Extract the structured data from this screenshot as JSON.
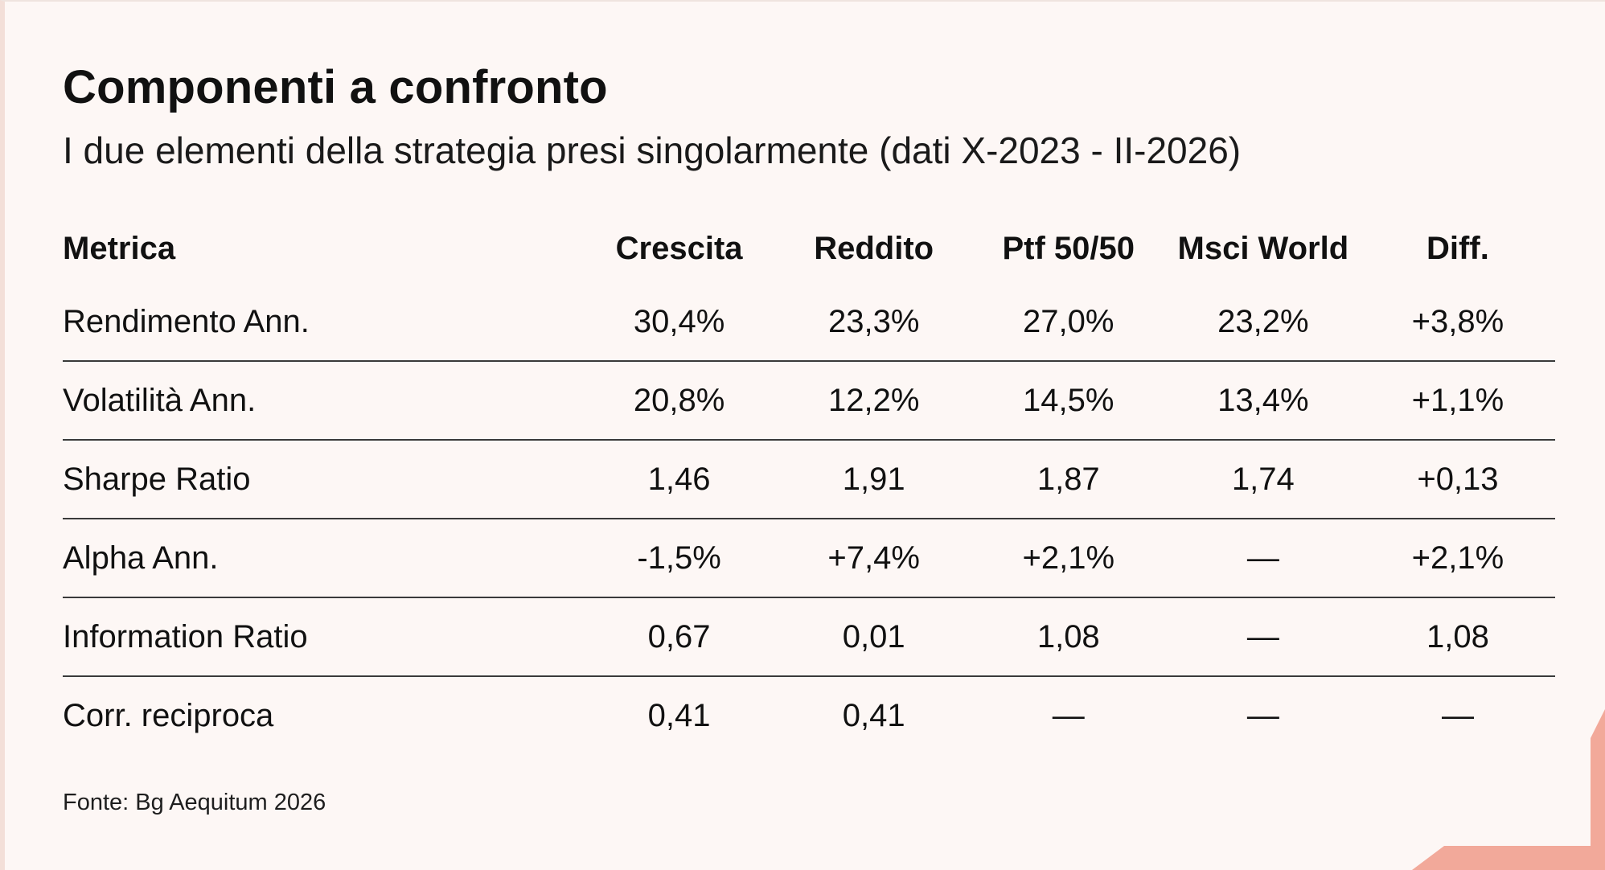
{
  "title": "Componenti a confronto",
  "subtitle": "I due elementi della strategia presi singolarmente (dati X-2023 - II-2026)",
  "source": "Fonte: Bg Aequitum 2026",
  "colors": {
    "background": "#fdf7f5",
    "accent": "#f2a99a",
    "rule": "#3a3a3a"
  },
  "chart_data": {
    "type": "table",
    "columns": [
      "Metrica",
      "Crescita",
      "Reddito",
      "Ptf 50/50",
      "Msci World",
      "Diff."
    ],
    "rows": [
      [
        "Rendimento Ann.",
        "30,4%",
        "23,3%",
        "27,0%",
        "23,2%",
        "+3,8%"
      ],
      [
        "Volatilità Ann.",
        "20,8%",
        "12,2%",
        "14,5%",
        "13,4%",
        "+1,1%"
      ],
      [
        "Sharpe Ratio",
        "1,46",
        "1,91",
        "1,87",
        "1,74",
        "+0,13"
      ],
      [
        "Alpha Ann.",
        "-1,5%",
        "+7,4%",
        "+2,1%",
        "—",
        "+2,1%"
      ],
      [
        "Information Ratio",
        "0,67",
        "0,01",
        "1,08",
        "—",
        "1,08"
      ],
      [
        "Corr. reciproca",
        "0,41",
        "0,41",
        "—",
        "—",
        "—"
      ]
    ]
  }
}
